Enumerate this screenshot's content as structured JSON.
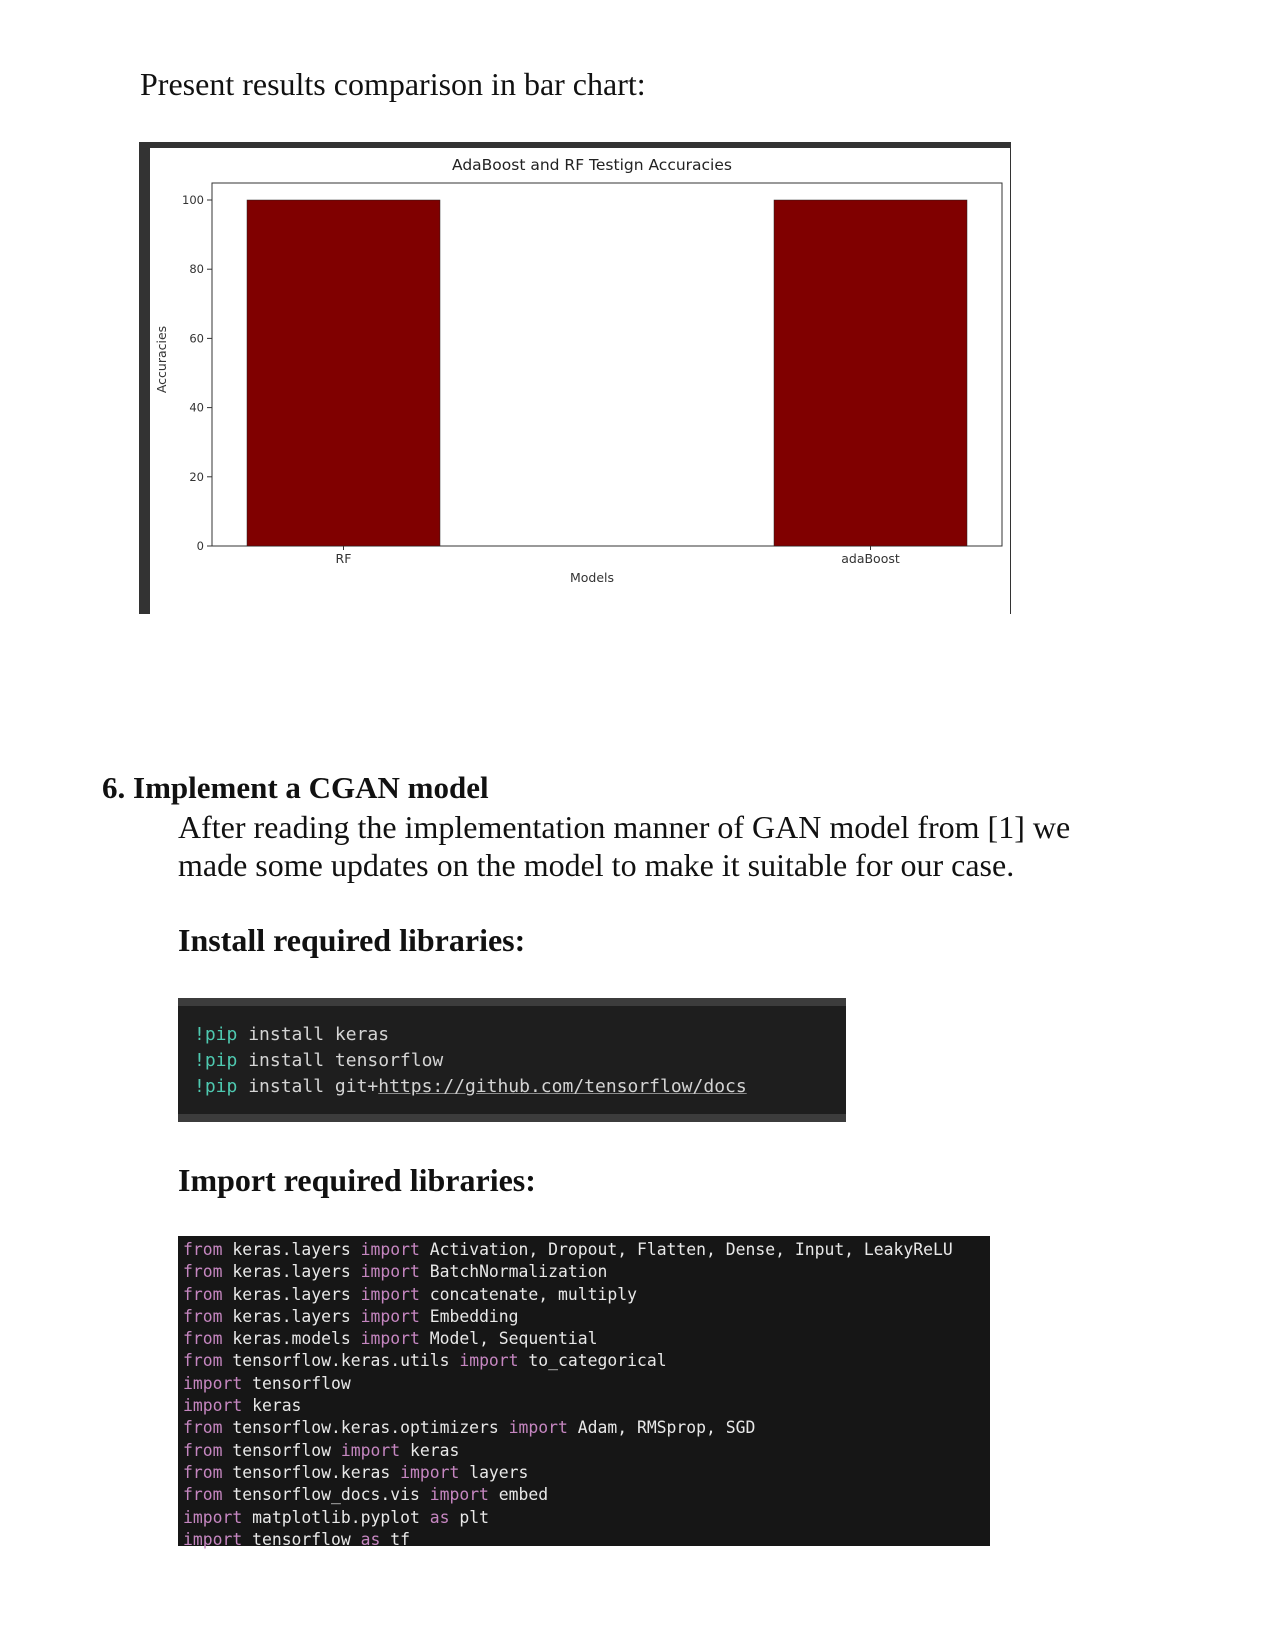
{
  "intro": "Present results comparison in bar chart:",
  "chart_data": {
    "type": "bar",
    "title": "AdaBoost and RF Testign Accuracies",
    "xlabel": "Models",
    "ylabel": "Accuracies",
    "categories": [
      "RF",
      "adaBoost"
    ],
    "values": [
      100,
      100
    ],
    "yticks": [
      0,
      20,
      40,
      60,
      80,
      100
    ],
    "ylim": [
      0,
      100
    ],
    "grid": false,
    "bar_color": "#800000"
  },
  "section": {
    "heading": "6. Implement a CGAN model",
    "paragraph_lines": [
      "After reading the implementation manner of GAN model from [1] we",
      "made some updates on the model to make it suitable for our case."
    ],
    "install_heading": "Install required libraries:",
    "import_heading": "Import required libraries:"
  },
  "install_code": [
    {
      "pip": "!pip",
      "rest": " install keras",
      "url": ""
    },
    {
      "pip": "!pip",
      "rest": " install tensorflow",
      "url": ""
    },
    {
      "pip": "!pip",
      "rest": " install git+",
      "url": "https://github.com/tensorflow/docs"
    }
  ],
  "import_code": [
    [
      {
        "t": "from",
        "k": true
      },
      {
        "t": " keras.layers ",
        "k": false
      },
      {
        "t": "import",
        "k": true
      },
      {
        "t": " Activation, Dropout, Flatten, Dense, Input, LeakyReLU",
        "k": false
      }
    ],
    [
      {
        "t": "from",
        "k": true
      },
      {
        "t": " keras.layers ",
        "k": false
      },
      {
        "t": "import",
        "k": true
      },
      {
        "t": " BatchNormalization",
        "k": false
      }
    ],
    [
      {
        "t": "from",
        "k": true
      },
      {
        "t": " keras.layers ",
        "k": false
      },
      {
        "t": "import",
        "k": true
      },
      {
        "t": " concatenate, multiply",
        "k": false
      }
    ],
    [
      {
        "t": "from",
        "k": true
      },
      {
        "t": " keras.layers ",
        "k": false
      },
      {
        "t": "import",
        "k": true
      },
      {
        "t": " Embedding",
        "k": false
      }
    ],
    [
      {
        "t": "from",
        "k": true
      },
      {
        "t": " keras.models ",
        "k": false
      },
      {
        "t": "import",
        "k": true
      },
      {
        "t": " Model, Sequential",
        "k": false
      }
    ],
    [
      {
        "t": "from",
        "k": true
      },
      {
        "t": " tensorflow.keras.utils ",
        "k": false
      },
      {
        "t": "import",
        "k": true
      },
      {
        "t": " to_categorical",
        "k": false
      }
    ],
    [
      {
        "t": "import",
        "k": true
      },
      {
        "t": " tensorflow",
        "k": false
      }
    ],
    [
      {
        "t": "import",
        "k": true
      },
      {
        "t": " keras",
        "k": false
      }
    ],
    [
      {
        "t": "from",
        "k": true
      },
      {
        "t": " tensorflow.keras.optimizers ",
        "k": false
      },
      {
        "t": "import",
        "k": true
      },
      {
        "t": " Adam, RMSprop, SGD",
        "k": false
      }
    ],
    [
      {
        "t": "from",
        "k": true
      },
      {
        "t": " tensorflow ",
        "k": false
      },
      {
        "t": "import",
        "k": true
      },
      {
        "t": " keras",
        "k": false
      }
    ],
    [
      {
        "t": "from",
        "k": true
      },
      {
        "t": " tensorflow.keras ",
        "k": false
      },
      {
        "t": "import",
        "k": true
      },
      {
        "t": " layers",
        "k": false
      }
    ],
    [
      {
        "t": "from",
        "k": true
      },
      {
        "t": " tensorflow_docs.vis ",
        "k": false
      },
      {
        "t": "import",
        "k": true
      },
      {
        "t": " embed",
        "k": false
      }
    ],
    [
      {
        "t": "import",
        "k": true
      },
      {
        "t": " matplotlib.pyplot ",
        "k": false
      },
      {
        "t": "as",
        "k": true
      },
      {
        "t": " plt",
        "k": false
      }
    ],
    [
      {
        "t": "import",
        "k": true
      },
      {
        "t": " tensorflow ",
        "k": false
      },
      {
        "t": "as",
        "k": true
      },
      {
        "t": " tf",
        "k": false
      }
    ]
  ],
  "colors": {
    "bar": "#800000",
    "keyword": "#c586c0",
    "pip": "#4ec9b0",
    "code_bg": "#1e1e1e"
  }
}
